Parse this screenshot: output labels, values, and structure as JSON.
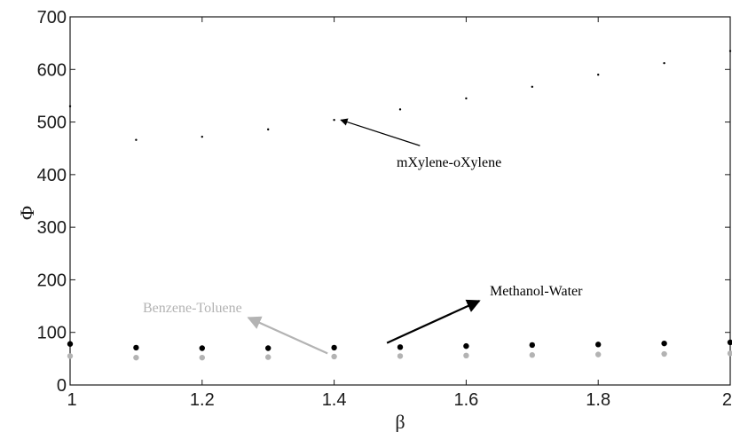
{
  "chart_data": {
    "type": "scatter",
    "xlabel": "β",
    "ylabel": "Φ",
    "xlim": [
      1,
      2
    ],
    "ylim": [
      0,
      700
    ],
    "x_ticks": [
      "1",
      "1.2",
      "1.4",
      "1.6",
      "1.8",
      "2"
    ],
    "y_ticks": [
      "0",
      "100",
      "200",
      "300",
      "400",
      "500",
      "600",
      "700"
    ],
    "grid": false,
    "series": [
      {
        "name": "mXylene-oXylene",
        "color": "#000000",
        "marker": "small-dot",
        "x": [
          1.0,
          1.1,
          1.2,
          1.3,
          1.4,
          1.5,
          1.6,
          1.7,
          1.8,
          1.9,
          2.0
        ],
        "y": [
          530,
          466,
          472,
          486,
          504,
          524,
          545,
          567,
          590,
          612,
          635
        ]
      },
      {
        "name": "Methanol-Water",
        "color": "#000000",
        "marker": "large-dot",
        "x": [
          1.0,
          1.1,
          1.2,
          1.3,
          1.4,
          1.5,
          1.6,
          1.7,
          1.8,
          1.9,
          2.0
        ],
        "y": [
          78,
          71,
          70,
          70,
          71,
          72,
          74,
          76,
          77,
          79,
          81
        ]
      },
      {
        "name": "Benzene-Toluene",
        "color": "#b3b3b3",
        "marker": "large-dot",
        "x": [
          1.0,
          1.1,
          1.2,
          1.3,
          1.4,
          1.5,
          1.6,
          1.7,
          1.8,
          1.9,
          2.0
        ],
        "y": [
          55,
          52,
          52,
          53,
          54,
          55,
          56,
          57,
          58,
          59,
          60
        ]
      }
    ],
    "annotations": [
      {
        "text": "mXylene-oXylene",
        "color": "#000000",
        "arrow_from": [
          1.53,
          455
        ],
        "arrow_to": [
          1.41,
          504
        ]
      },
      {
        "text": "Methanol-Water",
        "color": "#000000",
        "arrow_from": [
          1.48,
          80
        ],
        "arrow_to": [
          1.62,
          160
        ]
      },
      {
        "text": "Benzene-Toluene",
        "color": "#b3b3b3",
        "arrow_from": [
          1.39,
          60
        ],
        "arrow_to": [
          1.27,
          128
        ]
      }
    ]
  }
}
